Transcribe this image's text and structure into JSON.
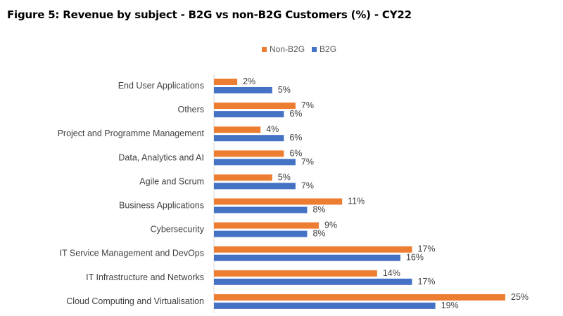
{
  "chart_data": {
    "type": "bar",
    "orientation": "horizontal",
    "title": "Figure 5: Revenue by subject - B2G vs non-B2G Customers (%) - CY22",
    "categories": [
      "End User Applications",
      "Others",
      "Project and Programme Management",
      "Data, Analytics and AI",
      "Agile and Scrum",
      "Business Applications",
      "Cybersecurity",
      "IT Service Management and DevOps",
      "IT Infrastructure and Networks",
      "Cloud Computing and Virtualisation"
    ],
    "series": [
      {
        "name": "Non-B2G",
        "color": "#ED7D31",
        "values": [
          2,
          7,
          4,
          6,
          5,
          11,
          9,
          17,
          14,
          25
        ]
      },
      {
        "name": "B2G",
        "color": "#4472C4",
        "values": [
          5,
          6,
          6,
          7,
          7,
          8,
          8,
          16,
          17,
          19
        ]
      }
    ],
    "value_suffix": "%",
    "xlim": [
      0,
      25
    ],
    "grid": false,
    "legend_position": "top"
  }
}
